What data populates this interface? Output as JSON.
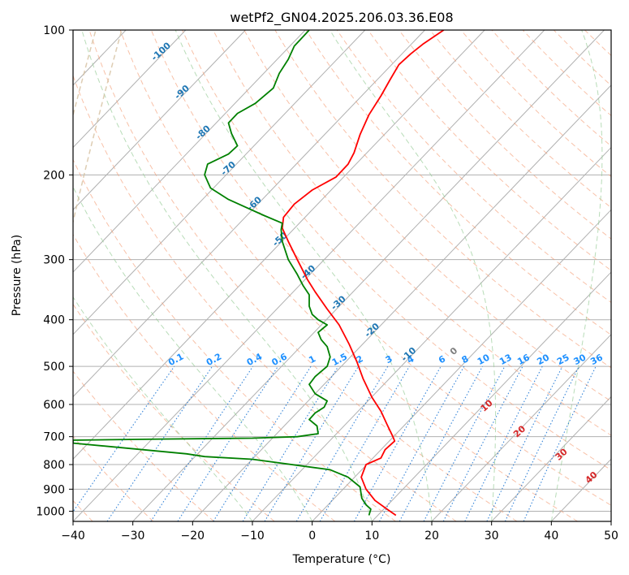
{
  "chart_data": {
    "type": "line",
    "title": "wetPf2_GN04.2025.206.03.36.E08",
    "xlabel": "Temperature (°C)",
    "ylabel": "Pressure (hPa)",
    "xlim": [
      -40,
      50
    ],
    "ylim": [
      1050,
      100
    ],
    "y_scale": "log",
    "grid": "on",
    "x_ticks": [
      "−40",
      "−30",
      "−20",
      "−10",
      "0",
      "10",
      "20",
      "30",
      "40",
      "50"
    ],
    "y_ticks": [
      "100",
      "200",
      "300",
      "400",
      "500",
      "600",
      "700",
      "800",
      "900",
      "1000"
    ],
    "x_tick_values": [
      -40,
      -30,
      -20,
      -10,
      0,
      10,
      20,
      30,
      40,
      50
    ],
    "y_tick_values": [
      100,
      200,
      300,
      400,
      500,
      600,
      700,
      800,
      900,
      1000
    ],
    "isotherm_labels": [
      {
        "text": "-100",
        "t": -100,
        "p": 112
      },
      {
        "text": "-90",
        "t": -90,
        "p": 136
      },
      {
        "text": "-80",
        "t": -80,
        "p": 165
      },
      {
        "text": "-70",
        "t": -70,
        "p": 196
      },
      {
        "text": "-60",
        "t": -60,
        "p": 232
      },
      {
        "text": "-50",
        "t": -50,
        "p": 275
      },
      {
        "text": "-40",
        "t": -40,
        "p": 322
      },
      {
        "text": "-30",
        "t": -30,
        "p": 373
      },
      {
        "text": "-20",
        "t": -20,
        "p": 425
      },
      {
        "text": "-10",
        "t": -10,
        "p": 477
      }
    ],
    "mixing_ratio_labels": [
      "0.1",
      "0.2",
      "0.4",
      "0.6",
      "1",
      "1.5",
      "2",
      "3",
      "4",
      "6",
      "8",
      "10",
      "13",
      "16",
      "20",
      "25",
      "30",
      "36"
    ],
    "mixing_ratio_values": [
      0.1,
      0.2,
      0.4,
      0.6,
      1,
      1.5,
      2,
      3,
      4,
      6,
      8,
      10,
      13,
      16,
      20,
      25,
      30,
      36
    ],
    "moist_adiabat_labels": [
      "0",
      "10",
      "20",
      "30",
      "40"
    ],
    "series": [
      {
        "color": "#ff0000",
        "points": [
          [
            14,
            1020
          ],
          [
            12.5,
            990
          ],
          [
            10.5,
            950
          ],
          [
            9,
            900
          ],
          [
            8.2,
            850
          ],
          [
            9,
            800
          ],
          [
            11.5,
            775
          ],
          [
            12.2,
            745
          ],
          [
            13.8,
            715
          ],
          [
            13.5,
            700
          ],
          [
            12.5,
            660
          ],
          [
            11.5,
            620
          ],
          [
            10,
            580
          ],
          [
            8.5,
            530
          ],
          [
            7.5,
            490
          ],
          [
            6.2,
            450
          ],
          [
            4.5,
            410
          ],
          [
            2.5,
            380
          ],
          [
            0.5,
            350
          ],
          [
            -0.8,
            330
          ],
          [
            -2.5,
            300
          ],
          [
            -4,
            275
          ],
          [
            -5,
            258
          ],
          [
            -4.8,
            245
          ],
          [
            -3,
            230
          ],
          [
            0,
            215
          ],
          [
            4,
            202
          ],
          [
            6,
            190
          ],
          [
            7,
            180
          ],
          [
            8,
            165
          ],
          [
            9.5,
            150
          ],
          [
            11.5,
            137
          ],
          [
            13,
            127
          ],
          [
            14.5,
            118
          ],
          [
            16.5,
            112
          ],
          [
            18.5,
            107
          ],
          [
            22,
            100
          ]
        ]
      },
      {
        "color": "#008000",
        "points": [
          [
            9.5,
            1020
          ],
          [
            9.8,
            990
          ],
          [
            9,
            970
          ],
          [
            8.3,
            940
          ],
          [
            8,
            890
          ],
          [
            6,
            850
          ],
          [
            3,
            820
          ],
          [
            -10,
            780
          ],
          [
            -18,
            770
          ],
          [
            -21,
            760
          ],
          [
            -40,
            722
          ],
          [
            -40,
            712
          ],
          [
            -25,
            708
          ],
          [
            -10,
            705
          ],
          [
            -2.5,
            700
          ],
          [
            1,
            690
          ],
          [
            0.8,
            665
          ],
          [
            -0.5,
            645
          ],
          [
            0.5,
            625
          ],
          [
            2,
            608
          ],
          [
            2.5,
            590
          ],
          [
            0.5,
            570
          ],
          [
            -0.5,
            545
          ],
          [
            0.5,
            525
          ],
          [
            2.5,
            500
          ],
          [
            3,
            478
          ],
          [
            2.5,
            455
          ],
          [
            1.5,
            440
          ],
          [
            1,
            425
          ],
          [
            2.5,
            410
          ],
          [
            1,
            400
          ],
          [
            0,
            390
          ],
          [
            -0.5,
            375
          ],
          [
            -0.5,
            355
          ],
          [
            -1.5,
            340
          ],
          [
            -2.5,
            322
          ],
          [
            -4,
            300
          ],
          [
            -5,
            275
          ],
          [
            -5.2,
            260
          ],
          [
            -5,
            252
          ],
          [
            -8,
            243
          ],
          [
            -14,
            225
          ],
          [
            -17,
            213
          ],
          [
            -18,
            200
          ],
          [
            -17.5,
            190
          ],
          [
            -14,
            181
          ],
          [
            -12.5,
            174
          ],
          [
            -13.5,
            164
          ],
          [
            -14,
            156
          ],
          [
            -12.5,
            149
          ],
          [
            -9.5,
            142
          ],
          [
            -6.5,
            132
          ],
          [
            -5.5,
            123
          ],
          [
            -4,
            115
          ],
          [
            -3,
            108
          ],
          [
            -0.5,
            100
          ]
        ]
      }
    ]
  }
}
